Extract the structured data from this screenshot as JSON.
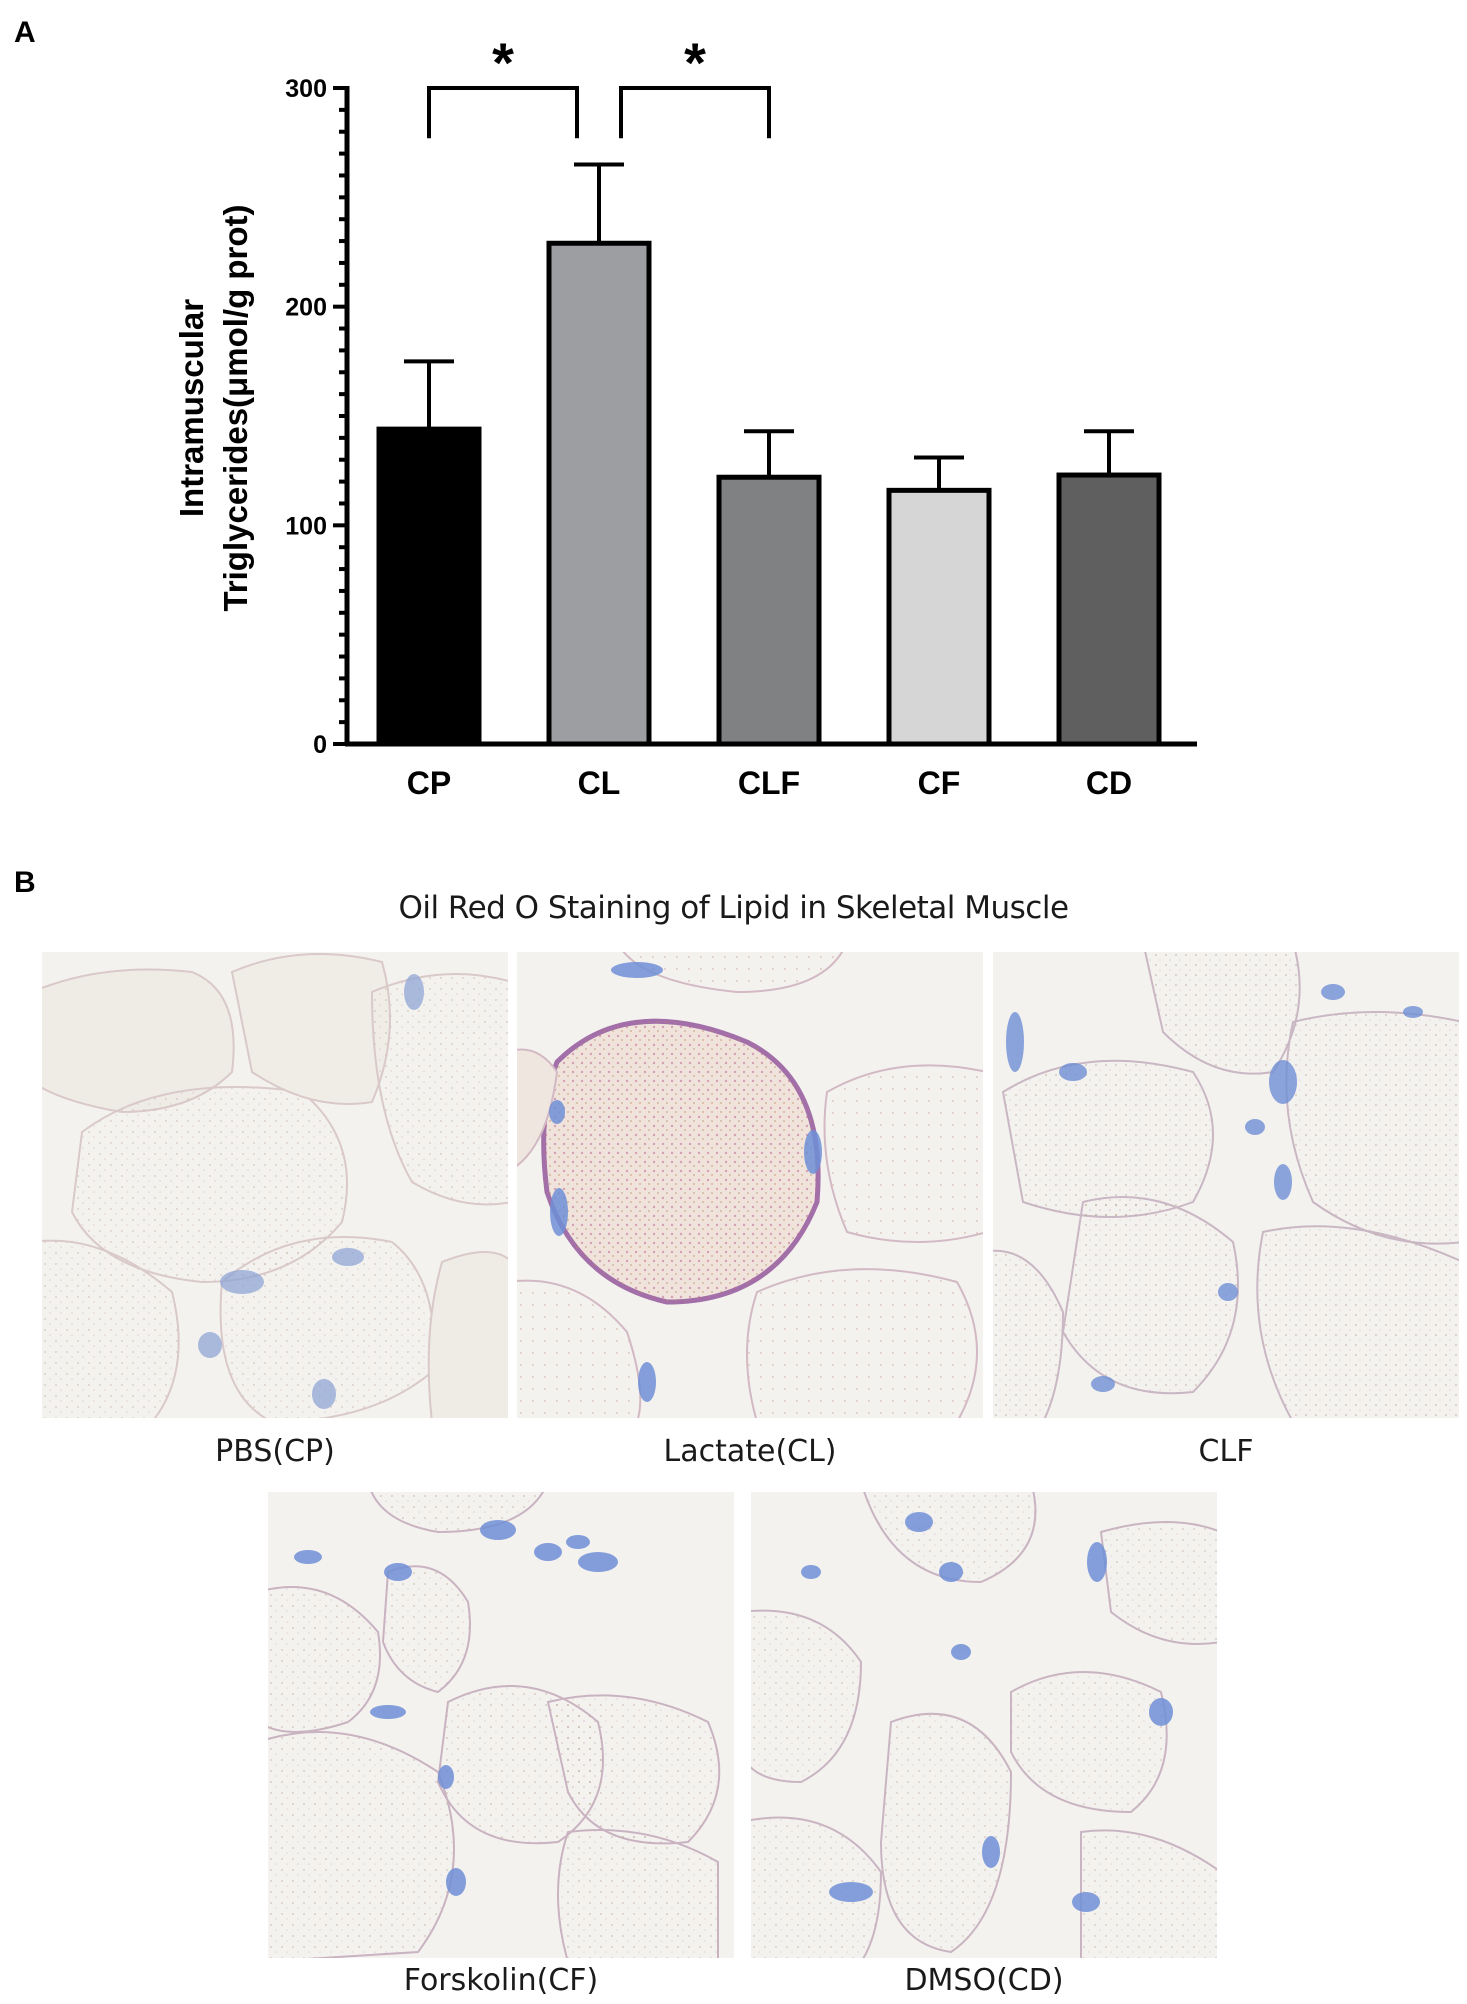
{
  "panel_a": {
    "letter": "A"
  },
  "panel_b": {
    "letter": "B",
    "title": "Oil Red O Staining of Lipid in Skeletal Muscle"
  },
  "chart_data": {
    "type": "bar",
    "categories": [
      "CP",
      "CL",
      "CLF",
      "CF",
      "CD"
    ],
    "values": [
      144,
      229,
      122,
      116,
      123
    ],
    "errors": [
      31,
      36,
      21,
      15,
      20
    ],
    "colors": [
      "#000000",
      "#9c9ea1",
      "#808182",
      "#d6d6d6",
      "#5f5f60"
    ],
    "ylabel_line1": "Intramuscular",
    "ylabel_line2": "Triglycerides(μmol/g prot)",
    "ylim": [
      0,
      300
    ],
    "yticks": [
      0,
      100,
      200,
      300
    ],
    "significance": [
      {
        "from": "CP",
        "to": "CL",
        "label": "*"
      },
      {
        "from": "CL",
        "to": "CLF",
        "label": "*"
      }
    ]
  },
  "images": [
    {
      "caption": "PBS(CP)",
      "stain": "faint"
    },
    {
      "caption": "Lactate(CL)",
      "stain": "strong"
    },
    {
      "caption": "CLF",
      "stain": "faint"
    },
    {
      "caption": "Forskolin(CF)",
      "stain": "faint"
    },
    {
      "caption": "DMSO(CD)",
      "stain": "faint"
    }
  ]
}
